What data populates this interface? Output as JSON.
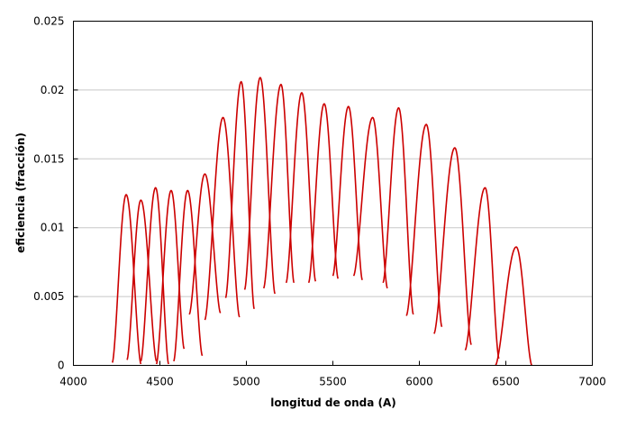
{
  "chart_data": {
    "type": "line",
    "title": "",
    "xlabel": "longitud de onda (A)",
    "ylabel": "eficiencia  (fracción)",
    "xlim": [
      4000,
      7000
    ],
    "ylim": [
      0,
      0.025
    ],
    "x_ticks": [
      4000,
      4500,
      5000,
      5500,
      6000,
      6500,
      7000
    ],
    "x_tick_labels": [
      "4000",
      "4500",
      "5000",
      "5500",
      "6000",
      "6500",
      "7000"
    ],
    "y_ticks": [
      0,
      0.005,
      0.01,
      0.015,
      0.02,
      0.025
    ],
    "y_tick_labels": [
      "0",
      "0.005",
      "0.01",
      "0.015",
      "0.02",
      "0.025"
    ],
    "grid": "horizontal",
    "legend": "none",
    "color": "#cc0000",
    "series": [
      {
        "peak_x": 4305,
        "peak_y": 0.0124,
        "x_start": 4225,
        "y_start": 0.0002,
        "x_end": 4390,
        "y_end": 0.0001
      },
      {
        "peak_x": 4390,
        "peak_y": 0.012,
        "x_start": 4310,
        "y_start": 0.0004,
        "x_end": 4480,
        "y_end": 0.0003
      },
      {
        "peak_x": 4475,
        "peak_y": 0.0129,
        "x_start": 4390,
        "y_start": 0.0003,
        "x_end": 4550,
        "y_end": 0.0001
      },
      {
        "peak_x": 4565,
        "peak_y": 0.0127,
        "x_start": 4480,
        "y_start": 0.0001,
        "x_end": 4640,
        "y_end": 0.0012
      },
      {
        "peak_x": 4660,
        "peak_y": 0.0127,
        "x_start": 4580,
        "y_start": 0.0003,
        "x_end": 4745,
        "y_end": 0.0007
      },
      {
        "peak_x": 4760,
        "peak_y": 0.0139,
        "x_start": 4670,
        "y_start": 0.0037,
        "x_end": 4850,
        "y_end": 0.0038
      },
      {
        "peak_x": 4865,
        "peak_y": 0.018,
        "x_start": 4760,
        "y_start": 0.0033,
        "x_end": 4960,
        "y_end": 0.0035
      },
      {
        "peak_x": 4970,
        "peak_y": 0.0206,
        "x_start": 4880,
        "y_start": 0.0049,
        "x_end": 5045,
        "y_end": 0.0041
      },
      {
        "peak_x": 5080,
        "peak_y": 0.0209,
        "x_start": 4990,
        "y_start": 0.0055,
        "x_end": 5165,
        "y_end": 0.0052
      },
      {
        "peak_x": 5200,
        "peak_y": 0.0204,
        "x_start": 5100,
        "y_start": 0.0056,
        "x_end": 5275,
        "y_end": 0.006
      },
      {
        "peak_x": 5320,
        "peak_y": 0.0198,
        "x_start": 5230,
        "y_start": 0.006,
        "x_end": 5400,
        "y_end": 0.0061
      },
      {
        "peak_x": 5450,
        "peak_y": 0.019,
        "x_start": 5360,
        "y_start": 0.006,
        "x_end": 5530,
        "y_end": 0.0063
      },
      {
        "peak_x": 5590,
        "peak_y": 0.0188,
        "x_start": 5500,
        "y_start": 0.0065,
        "x_end": 5670,
        "y_end": 0.0062
      },
      {
        "peak_x": 5730,
        "peak_y": 0.018,
        "x_start": 5620,
        "y_start": 0.0065,
        "x_end": 5815,
        "y_end": 0.0056
      },
      {
        "peak_x": 5880,
        "peak_y": 0.0187,
        "x_start": 5790,
        "y_start": 0.006,
        "x_end": 5965,
        "y_end": 0.0037
      },
      {
        "peak_x": 6040,
        "peak_y": 0.0175,
        "x_start": 5925,
        "y_start": 0.0036,
        "x_end": 6130,
        "y_end": 0.0028
      },
      {
        "peak_x": 6205,
        "peak_y": 0.0158,
        "x_start": 6085,
        "y_start": 0.0023,
        "x_end": 6300,
        "y_end": 0.0015
      },
      {
        "peak_x": 6380,
        "peak_y": 0.0129,
        "x_start": 6265,
        "y_start": 0.0011,
        "x_end": 6460,
        "y_end": 0.0005
      },
      {
        "peak_x": 6560,
        "peak_y": 0.0086,
        "x_start": 6440,
        "y_start": 0.0,
        "x_end": 6650,
        "y_end": 0.0
      }
    ]
  }
}
